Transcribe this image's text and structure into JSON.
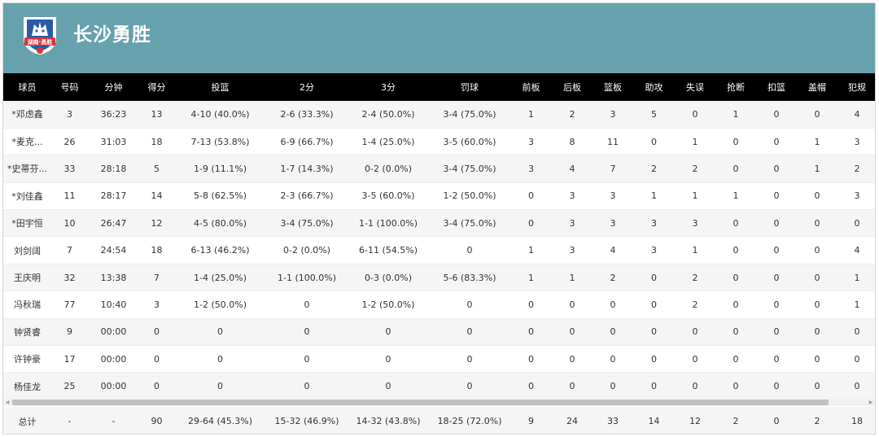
{
  "team": {
    "name": "长沙勇胜",
    "logo_text": "湖南·勇胜",
    "colors": {
      "header": "#67a1ad",
      "logo_red": "#d8343a",
      "logo_blue": "#2b5aa6"
    }
  },
  "table": {
    "headers": [
      "球员",
      "号码",
      "分钟",
      "得分",
      "投篮",
      "2分",
      "3分",
      "罚球",
      "前板",
      "后板",
      "篮板",
      "助攻",
      "失误",
      "抢断",
      "扣篮",
      "盖帽",
      "犯规"
    ],
    "rows": [
      [
        "*邓虑鑫",
        "3",
        "36:23",
        "13",
        "4-10 (40.0%)",
        "2-6 (33.3%)",
        "2-4 (50.0%)",
        "3-4 (75.0%)",
        "1",
        "2",
        "3",
        "5",
        "0",
        "1",
        "0",
        "0",
        "4"
      ],
      [
        "*麦克...",
        "26",
        "31:03",
        "18",
        "7-13 (53.8%)",
        "6-9 (66.7%)",
        "1-4 (25.0%)",
        "3-5 (60.0%)",
        "3",
        "8",
        "11",
        "0",
        "1",
        "0",
        "0",
        "1",
        "3"
      ],
      [
        "*史蒂芬...",
        "33",
        "28:18",
        "5",
        "1-9 (11.1%)",
        "1-7 (14.3%)",
        "0-2 (0.0%)",
        "3-4 (75.0%)",
        "3",
        "4",
        "7",
        "2",
        "2",
        "0",
        "0",
        "1",
        "2"
      ],
      [
        "*刘佳鑫",
        "11",
        "28:17",
        "14",
        "5-8 (62.5%)",
        "2-3 (66.7%)",
        "3-5 (60.0%)",
        "1-2 (50.0%)",
        "0",
        "3",
        "3",
        "1",
        "1",
        "1",
        "0",
        "0",
        "3"
      ],
      [
        "*田宇恒",
        "10",
        "26:47",
        "12",
        "4-5 (80.0%)",
        "3-4 (75.0%)",
        "1-1 (100.0%)",
        "3-4 (75.0%)",
        "0",
        "3",
        "3",
        "3",
        "3",
        "0",
        "0",
        "0",
        "0"
      ],
      [
        "刘剑阔",
        "7",
        "24:54",
        "18",
        "6-13 (46.2%)",
        "0-2 (0.0%)",
        "6-11 (54.5%)",
        "0",
        "1",
        "3",
        "4",
        "3",
        "1",
        "0",
        "0",
        "0",
        "4"
      ],
      [
        "王庆明",
        "32",
        "13:38",
        "7",
        "1-4 (25.0%)",
        "1-1 (100.0%)",
        "0-3 (0.0%)",
        "5-6 (83.3%)",
        "1",
        "1",
        "2",
        "0",
        "2",
        "0",
        "0",
        "0",
        "1"
      ],
      [
        "冯秋瑞",
        "77",
        "10:40",
        "3",
        "1-2 (50.0%)",
        "0",
        "1-2 (50.0%)",
        "0",
        "0",
        "0",
        "0",
        "0",
        "2",
        "0",
        "0",
        "0",
        "1"
      ],
      [
        "钟贤睿",
        "9",
        "00:00",
        "0",
        "0",
        "0",
        "0",
        "0",
        "0",
        "0",
        "0",
        "0",
        "0",
        "0",
        "0",
        "0",
        "0"
      ],
      [
        "许钟豪",
        "17",
        "00:00",
        "0",
        "0",
        "0",
        "0",
        "0",
        "0",
        "0",
        "0",
        "0",
        "0",
        "0",
        "0",
        "0",
        "0"
      ],
      [
        "杨佳龙",
        "25",
        "00:00",
        "0",
        "0",
        "0",
        "0",
        "0",
        "0",
        "0",
        "0",
        "0",
        "0",
        "0",
        "0",
        "0",
        "0"
      ]
    ],
    "totals": [
      "总计",
      "-",
      "-",
      "90",
      "29-64 (45.3%)",
      "15-32 (46.9%)",
      "14-32 (43.8%)",
      "18-25 (72.0%)",
      "9",
      "24",
      "33",
      "14",
      "12",
      "2",
      "0",
      "2",
      "18"
    ]
  },
  "scrollbar": {
    "left_arrow_icon": "chevron-left-icon",
    "right_arrow_icon": "chevron-right-icon"
  }
}
